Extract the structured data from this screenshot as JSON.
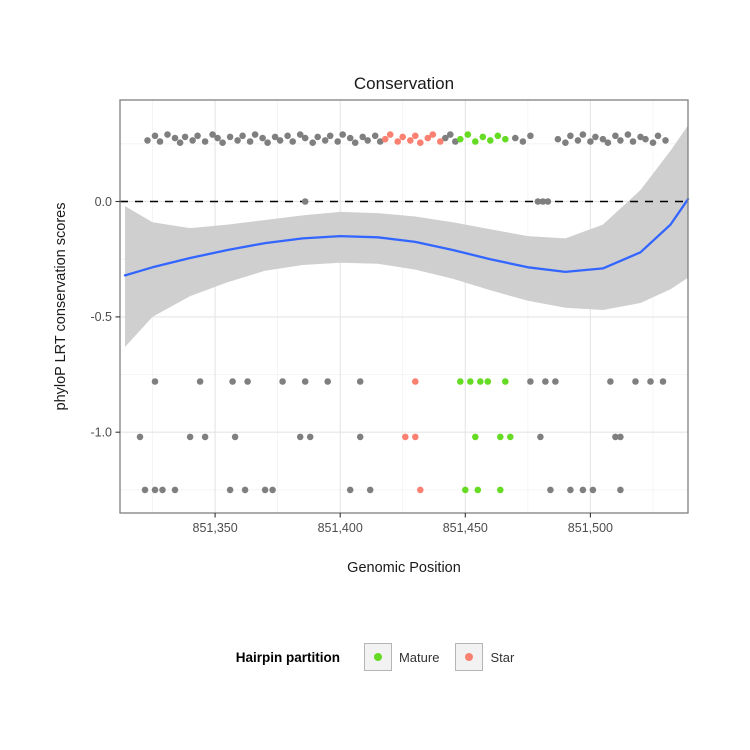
{
  "title": "Conservation",
  "x_axis": {
    "label": "Genomic Position",
    "ticks": [
      851350,
      851400,
      851450,
      851500
    ],
    "tick_labels": [
      "851,350",
      "851,400",
      "851,450",
      "851,500"
    ],
    "minor_ticks": [
      851325,
      851375,
      851425,
      851475,
      851525
    ],
    "range": [
      851312,
      851539
    ]
  },
  "y_axis": {
    "label": "phyloP LRT conservation scores",
    "ticks": [
      0.0,
      -0.5,
      -1.0
    ],
    "tick_labels": [
      "0.0",
      "-0.5",
      "-1.0"
    ],
    "minor_ticks": [
      0.25,
      -0.25,
      -0.75,
      -1.25
    ],
    "range": [
      -1.35,
      0.44
    ]
  },
  "legend": {
    "title": "Hairpin partition",
    "items": [
      {
        "label": "Mature",
        "color": "#65DB23"
      },
      {
        "label": "Star",
        "color": "#FA8072"
      }
    ]
  },
  "colors": {
    "hairpin": "#7F7F7F",
    "mature": "#65DB23",
    "star": "#FA8072",
    "smooth_line": "#3366FF",
    "band": "#CFCFCF",
    "reference_line": "#000000",
    "grid_major": "#E5E5E5",
    "grid_minor": "#F2F2F2",
    "panel_border": "#7F7F7F",
    "tick_text": "#4D4D4D"
  },
  "chart_data": {
    "type": "scatter",
    "title": "Conservation",
    "xlabel": "Genomic Position",
    "ylabel": "phyloP LRT conservation scores",
    "xlim": [
      851312,
      851539
    ],
    "ylim": [
      -1.35,
      0.44
    ],
    "grid": true,
    "legend_position": "bottom",
    "reference_line_y": 0,
    "smooth": {
      "x": [
        851314,
        851325,
        851340,
        851355,
        851370,
        851385,
        851400,
        851415,
        851430,
        851445,
        851460,
        851475,
        851490,
        851505,
        851520,
        851532,
        851539
      ],
      "y": [
        -0.32,
        -0.285,
        -0.245,
        -0.21,
        -0.18,
        -0.16,
        -0.15,
        -0.155,
        -0.175,
        -0.21,
        -0.25,
        -0.285,
        -0.305,
        -0.29,
        -0.22,
        -0.1,
        0.01
      ],
      "upper": [
        -0.02,
        -0.09,
        -0.115,
        -0.1,
        -0.08,
        -0.06,
        -0.045,
        -0.05,
        -0.065,
        -0.09,
        -0.12,
        -0.15,
        -0.16,
        -0.1,
        0.05,
        0.22,
        0.33
      ],
      "lower": [
        -0.63,
        -0.5,
        -0.41,
        -0.35,
        -0.3,
        -0.275,
        -0.265,
        -0.27,
        -0.295,
        -0.335,
        -0.385,
        -0.43,
        -0.46,
        -0.47,
        -0.44,
        -0.38,
        -0.33
      ]
    },
    "points": {
      "hairpin": [
        [
          851323,
          0.265
        ],
        [
          851326,
          0.285
        ],
        [
          851328,
          0.26
        ],
        [
          851331,
          0.29
        ],
        [
          851334,
          0.275
        ],
        [
          851336,
          0.255
        ],
        [
          851338,
          0.28
        ],
        [
          851341,
          0.265
        ],
        [
          851343,
          0.285
        ],
        [
          851346,
          0.26
        ],
        [
          851349,
          0.29
        ],
        [
          851351,
          0.275
        ],
        [
          851353,
          0.255
        ],
        [
          851356,
          0.28
        ],
        [
          851359,
          0.265
        ],
        [
          851361,
          0.285
        ],
        [
          851364,
          0.26
        ],
        [
          851366,
          0.29
        ],
        [
          851369,
          0.275
        ],
        [
          851371,
          0.255
        ],
        [
          851374,
          0.28
        ],
        [
          851376,
          0.265
        ],
        [
          851379,
          0.285
        ],
        [
          851381,
          0.26
        ],
        [
          851384,
          0.29
        ],
        [
          851386,
          0.275
        ],
        [
          851389,
          0.255
        ],
        [
          851391,
          0.28
        ],
        [
          851394,
          0.265
        ],
        [
          851396,
          0.285
        ],
        [
          851399,
          0.26
        ],
        [
          851401,
          0.29
        ],
        [
          851404,
          0.275
        ],
        [
          851406,
          0.255
        ],
        [
          851409,
          0.28
        ],
        [
          851411,
          0.265
        ],
        [
          851414,
          0.285
        ],
        [
          851416,
          0.26
        ],
        [
          851442,
          0.275
        ],
        [
          851444,
          0.29
        ],
        [
          851446,
          0.26
        ],
        [
          851470,
          0.275
        ],
        [
          851473,
          0.26
        ],
        [
          851476,
          0.285
        ],
        [
          851487,
          0.27
        ],
        [
          851490,
          0.255
        ],
        [
          851492,
          0.285
        ],
        [
          851495,
          0.265
        ],
        [
          851497,
          0.29
        ],
        [
          851500,
          0.26
        ],
        [
          851502,
          0.28
        ],
        [
          851505,
          0.27
        ],
        [
          851507,
          0.255
        ],
        [
          851510,
          0.285
        ],
        [
          851512,
          0.265
        ],
        [
          851515,
          0.29
        ],
        [
          851517,
          0.26
        ],
        [
          851520,
          0.28
        ],
        [
          851522,
          0.27
        ],
        [
          851525,
          0.255
        ],
        [
          851527,
          0.285
        ],
        [
          851530,
          0.265
        ],
        [
          851386,
          0
        ],
        [
          851479,
          0
        ],
        [
          851481,
          0
        ],
        [
          851483,
          0
        ],
        [
          851326,
          -0.78
        ],
        [
          851344,
          -0.78
        ],
        [
          851357,
          -0.78
        ],
        [
          851363,
          -0.78
        ],
        [
          851377,
          -0.78
        ],
        [
          851386,
          -0.78
        ],
        [
          851395,
          -0.78
        ],
        [
          851408,
          -0.78
        ],
        [
          851476,
          -0.78
        ],
        [
          851482,
          -0.78
        ],
        [
          851486,
          -0.78
        ],
        [
          851508,
          -0.78
        ],
        [
          851518,
          -0.78
        ],
        [
          851524,
          -0.78
        ],
        [
          851529,
          -0.78
        ],
        [
          851320,
          -1.02
        ],
        [
          851340,
          -1.02
        ],
        [
          851346,
          -1.02
        ],
        [
          851358,
          -1.02
        ],
        [
          851384,
          -1.02
        ],
        [
          851388,
          -1.02
        ],
        [
          851408,
          -1.02
        ],
        [
          851480,
          -1.02
        ],
        [
          851510,
          -1.02
        ],
        [
          851512,
          -1.02
        ],
        [
          851322,
          -1.25
        ],
        [
          851326,
          -1.25
        ],
        [
          851329,
          -1.25
        ],
        [
          851334,
          -1.25
        ],
        [
          851356,
          -1.25
        ],
        [
          851362,
          -1.25
        ],
        [
          851370,
          -1.25
        ],
        [
          851373,
          -1.25
        ],
        [
          851404,
          -1.25
        ],
        [
          851412,
          -1.25
        ],
        [
          851484,
          -1.25
        ],
        [
          851492,
          -1.25
        ],
        [
          851497,
          -1.25
        ],
        [
          851501,
          -1.25
        ],
        [
          851512,
          -1.25
        ]
      ],
      "mature": [
        [
          851448,
          0.27
        ],
        [
          851451,
          0.29
        ],
        [
          851454,
          0.26
        ],
        [
          851457,
          0.28
        ],
        [
          851460,
          0.265
        ],
        [
          851463,
          0.285
        ],
        [
          851466,
          0.27
        ],
        [
          851448,
          -0.78
        ],
        [
          851452,
          -0.78
        ],
        [
          851456,
          -0.78
        ],
        [
          851459,
          -0.78
        ],
        [
          851466,
          -0.78
        ],
        [
          851454,
          -1.02
        ],
        [
          851464,
          -1.02
        ],
        [
          851468,
          -1.02
        ],
        [
          851450,
          -1.25
        ],
        [
          851455,
          -1.25
        ],
        [
          851464,
          -1.25
        ]
      ],
      "star": [
        [
          851418,
          0.27
        ],
        [
          851420,
          0.29
        ],
        [
          851423,
          0.26
        ],
        [
          851425,
          0.28
        ],
        [
          851428,
          0.265
        ],
        [
          851430,
          0.285
        ],
        [
          851432,
          0.255
        ],
        [
          851435,
          0.275
        ],
        [
          851437,
          0.29
        ],
        [
          851440,
          0.26
        ],
        [
          851430,
          -0.78
        ],
        [
          851426,
          -1.02
        ],
        [
          851430,
          -1.02
        ],
        [
          851432,
          -1.25
        ]
      ]
    }
  }
}
